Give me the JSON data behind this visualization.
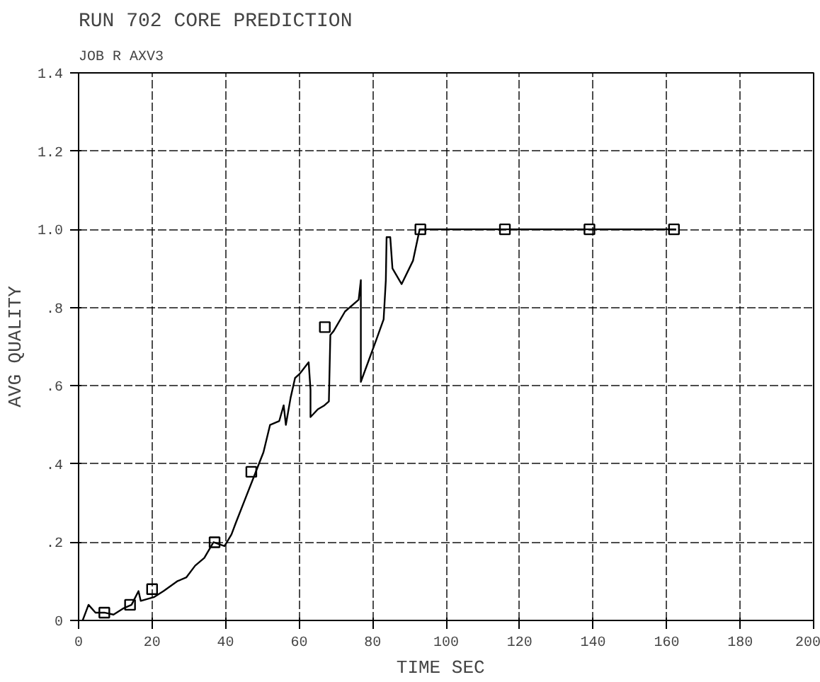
{
  "chart_data": {
    "type": "line",
    "title": "RUN 702 CORE PREDICTION",
    "subtitle": "JOB R AXV3",
    "xlabel": "TIME  SEC",
    "ylabel": "AVG QUALITY",
    "xlim": [
      0,
      200
    ],
    "ylim": [
      0,
      1.4
    ],
    "xticks": [
      0,
      20,
      40,
      60,
      80,
      100,
      120,
      140,
      160,
      180,
      200
    ],
    "yticks": [
      {
        "value": 0,
        "label": "0"
      },
      {
        "value": 0.2,
        "label": ".2"
      },
      {
        "value": 0.4,
        "label": ".4"
      },
      {
        "value": 0.6,
        "label": ".6"
      },
      {
        "value": 0.8,
        "label": ".8"
      },
      {
        "value": 1.0,
        "label": "1.0"
      },
      {
        "value": 1.2,
        "label": "1.2"
      },
      {
        "value": 1.4,
        "label": "1.4"
      }
    ],
    "grid": true,
    "line_style": "solid",
    "series": [
      {
        "color": "#000000",
        "marker": "none",
        "x": [
          1.1,
          2.7,
          4.6,
          7.0,
          9.5,
          12.0,
          14.4,
          16.3,
          16.9,
          20.6,
          23.1,
          26.8,
          29.3,
          31.7,
          34.2,
          36.7,
          39.7,
          41.6,
          42.8,
          45.3,
          47.8,
          50.3,
          52.1,
          54.6,
          55.8,
          56.4,
          57.7,
          58.9,
          60.1,
          62.6,
          63.1,
          63.1,
          65.1,
          66.9,
          68.1,
          68.5,
          69.4,
          72.5,
          76.2,
          76.8,
          76.8,
          81.1,
          83.0,
          83.6,
          83.8,
          84.8,
          85.4,
          87.9,
          91.0,
          92.8,
          162.6
        ],
        "values": [
          0.0,
          0.04,
          0.02,
          0.02,
          0.015,
          0.03,
          0.04,
          0.075,
          0.05,
          0.06,
          0.075,
          0.1,
          0.11,
          0.14,
          0.16,
          0.2,
          0.19,
          0.22,
          0.25,
          0.31,
          0.37,
          0.43,
          0.5,
          0.51,
          0.55,
          0.5,
          0.57,
          0.62,
          0.63,
          0.66,
          0.59,
          0.52,
          0.54,
          0.55,
          0.56,
          0.73,
          0.74,
          0.79,
          0.82,
          0.87,
          0.61,
          0.72,
          0.77,
          0.87,
          0.98,
          0.98,
          0.9,
          0.86,
          0.92,
          1.0,
          1.0
        ]
      },
      {
        "type": "scatter",
        "color": "#000000",
        "marker": "square",
        "x": [
          7,
          14,
          20,
          37,
          47,
          67,
          93,
          116,
          139,
          162
        ],
        "values": [
          0.02,
          0.04,
          0.08,
          0.2,
          0.38,
          0.75,
          1.0,
          1.0,
          1.0,
          1.0
        ]
      }
    ]
  }
}
